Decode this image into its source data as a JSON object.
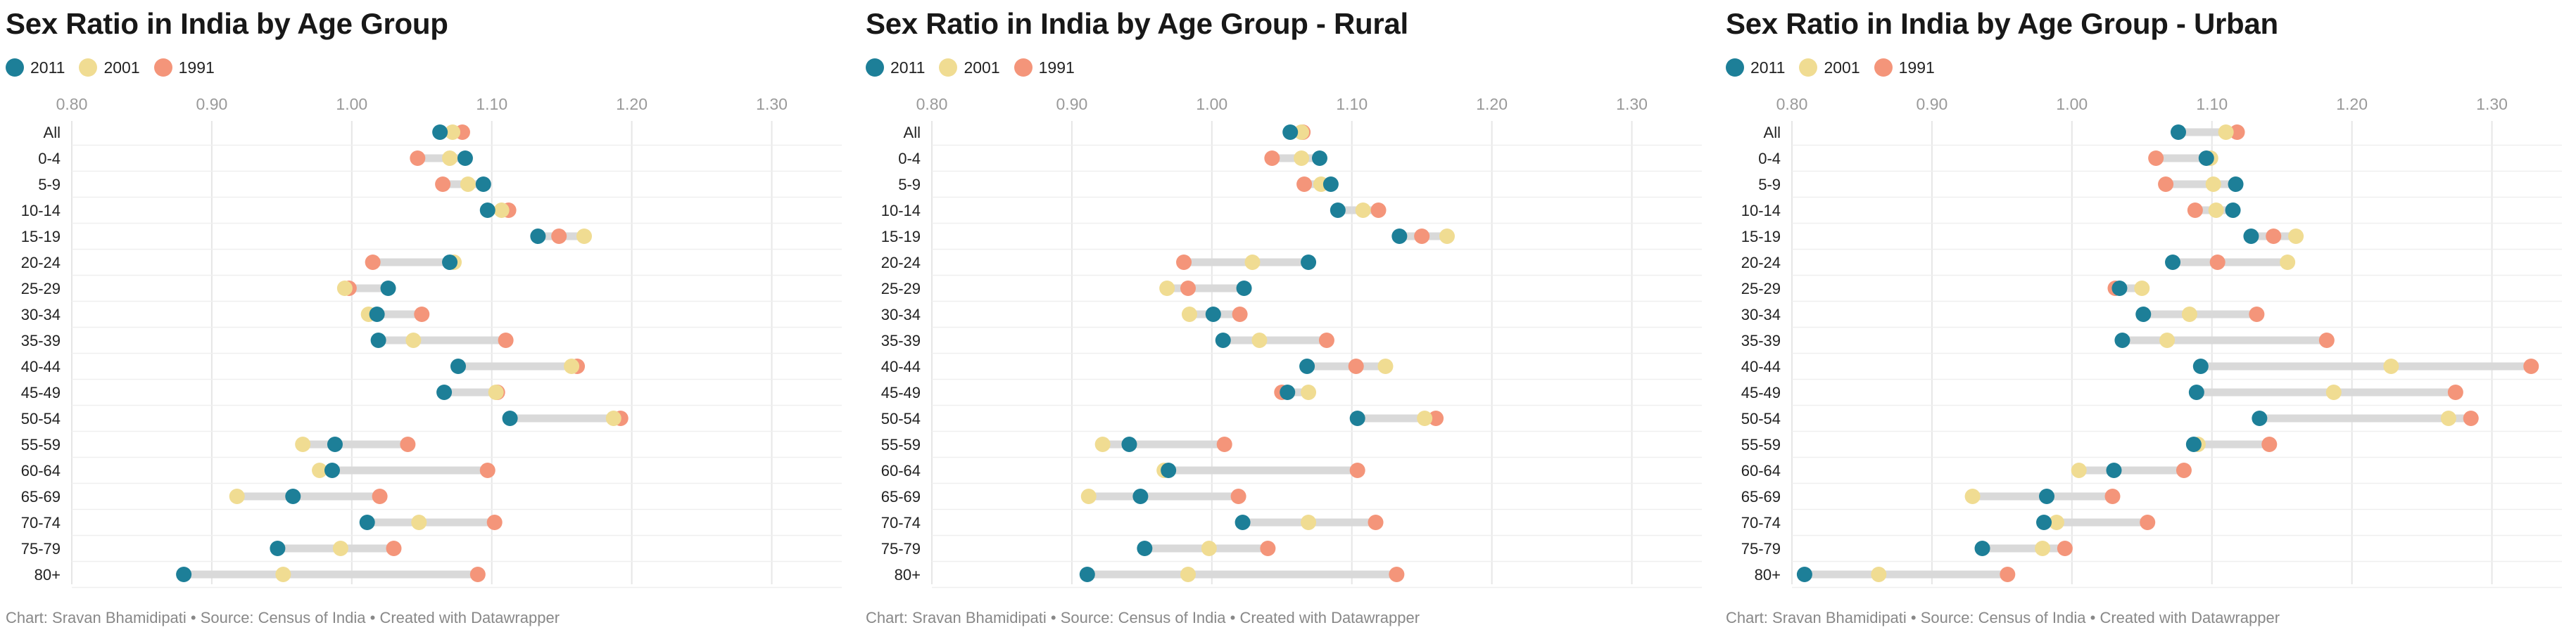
{
  "legend": [
    {
      "label": "2011",
      "color": "#1d7f98"
    },
    {
      "label": "2001",
      "color": "#f0dc92"
    },
    {
      "label": "1991",
      "color": "#f4957a"
    }
  ],
  "credit": "Chart: Sravan Bhamidipati • Source: Census of India • Created with Datawrapper",
  "chart_data": [
    {
      "type": "dot-range",
      "title": "Sex Ratio in India by Age Group",
      "xlim": [
        0.8,
        1.35
      ],
      "ticks": [
        "0.80",
        "0.90",
        "1.00",
        "1.10",
        "1.20",
        "1.30"
      ],
      "tick_values": [
        0.8,
        0.9,
        1.0,
        1.1,
        1.2,
        1.3
      ],
      "categories": [
        "All",
        "0-4",
        "5-9",
        "10-14",
        "15-19",
        "20-24",
        "25-29",
        "30-34",
        "35-39",
        "40-44",
        "45-49",
        "50-54",
        "55-59",
        "60-64",
        "65-69",
        "70-74",
        "75-79",
        "80+"
      ],
      "series": [
        {
          "name": "2011",
          "values": [
            1.063,
            1.081,
            1.094,
            1.097,
            1.133,
            1.07,
            1.026,
            1.018,
            1.019,
            1.076,
            1.066,
            1.113,
            0.988,
            0.986,
            0.958,
            1.011,
            0.947,
            0.88
          ]
        },
        {
          "name": "2001",
          "values": [
            1.072,
            1.07,
            1.083,
            1.107,
            1.166,
            1.073,
            0.995,
            1.012,
            1.044,
            1.157,
            1.103,
            1.187,
            0.965,
            0.977,
            0.918,
            1.048,
            0.992,
            0.951
          ]
        },
        {
          "name": "1991",
          "values": [
            1.079,
            1.047,
            1.065,
            1.112,
            1.148,
            1.015,
            0.998,
            1.05,
            1.11,
            1.161,
            1.104,
            1.192,
            1.04,
            1.097,
            1.02,
            1.102,
            1.03,
            1.09
          ]
        }
      ]
    },
    {
      "type": "dot-range",
      "title": "Sex Ratio in India by Age Group - Rural",
      "xlim": [
        0.8,
        1.35
      ],
      "ticks": [
        "0.80",
        "0.90",
        "1.00",
        "1.10",
        "1.20",
        "1.30"
      ],
      "tick_values": [
        0.8,
        0.9,
        1.0,
        1.1,
        1.2,
        1.3
      ],
      "categories": [
        "All",
        "0-4",
        "5-9",
        "10-14",
        "15-19",
        "20-24",
        "25-29",
        "30-34",
        "35-39",
        "40-44",
        "45-49",
        "50-54",
        "55-59",
        "60-64",
        "65-69",
        "70-74",
        "75-79",
        "80+"
      ],
      "series": [
        {
          "name": "2011",
          "values": [
            1.056,
            1.077,
            1.085,
            1.09,
            1.134,
            1.069,
            1.023,
            1.001,
            1.008,
            1.068,
            1.054,
            1.104,
            0.941,
            0.969,
            0.949,
            1.022,
            0.952,
            0.911
          ]
        },
        {
          "name": "2001",
          "values": [
            1.064,
            1.064,
            1.078,
            1.108,
            1.168,
            1.029,
            0.968,
            0.984,
            1.034,
            1.124,
            1.069,
            1.152,
            0.922,
            0.966,
            0.912,
            1.069,
            0.998,
            0.983
          ]
        },
        {
          "name": "1991",
          "values": [
            1.065,
            1.043,
            1.066,
            1.119,
            1.15,
            0.98,
            0.983,
            1.02,
            1.082,
            1.103,
            1.05,
            1.16,
            1.009,
            1.104,
            1.019,
            1.117,
            1.04,
            1.132
          ]
        }
      ]
    },
    {
      "type": "dot-range",
      "title": "Sex Ratio in India by Age Group - Urban",
      "xlim": [
        0.8,
        1.35
      ],
      "ticks": [
        "0.80",
        "0.90",
        "1.00",
        "1.10",
        "1.20",
        "1.30"
      ],
      "tick_values": [
        0.8,
        0.9,
        1.0,
        1.1,
        1.2,
        1.3
      ],
      "categories": [
        "All",
        "0-4",
        "5-9",
        "10-14",
        "15-19",
        "20-24",
        "25-29",
        "30-34",
        "35-39",
        "40-44",
        "45-49",
        "50-54",
        "55-59",
        "60-64",
        "65-69",
        "70-74",
        "75-79",
        "80+"
      ],
      "series": [
        {
          "name": "2011",
          "values": [
            1.076,
            1.096,
            1.117,
            1.115,
            1.128,
            1.072,
            1.034,
            1.051,
            1.036,
            1.092,
            1.089,
            1.134,
            1.087,
            1.03,
            0.982,
            0.98,
            0.936,
            0.809
          ]
        },
        {
          "name": "2001",
          "values": [
            1.11,
            1.099,
            1.101,
            1.103,
            1.16,
            1.154,
            1.05,
            1.084,
            1.068,
            1.228,
            1.187,
            1.269,
            1.09,
            1.005,
            0.929,
            0.989,
            0.979,
            0.862
          ]
        },
        {
          "name": "1991",
          "values": [
            1.118,
            1.06,
            1.067,
            1.088,
            1.144,
            1.104,
            1.031,
            1.132,
            1.182,
            1.328,
            1.274,
            1.285,
            1.141,
            1.08,
            1.029,
            1.054,
            0.995,
            0.954
          ]
        }
      ]
    }
  ]
}
